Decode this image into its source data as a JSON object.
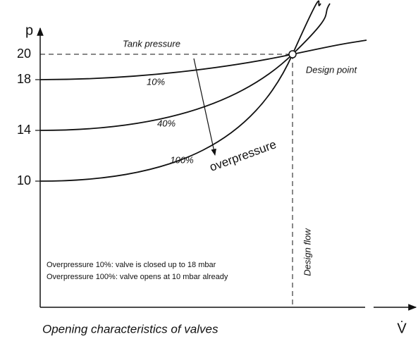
{
  "axis": {
    "y_label": "p",
    "y_ticks": [
      "20",
      "18",
      "14",
      "10"
    ],
    "x_label": "V̇"
  },
  "labels": {
    "tank_pressure": "Tank pressure",
    "design_point": "Design point",
    "design_flow": "Design flow",
    "overpressure": "overpressure"
  },
  "curves": [
    "10%",
    "40%",
    "100%"
  ],
  "notes": [
    "Overpressure 10%: valve is closed up to 18 mbar",
    "Overpressure 100%: valve opens at 10 mbar already"
  ],
  "caption": "Opening characteristics of valves"
}
